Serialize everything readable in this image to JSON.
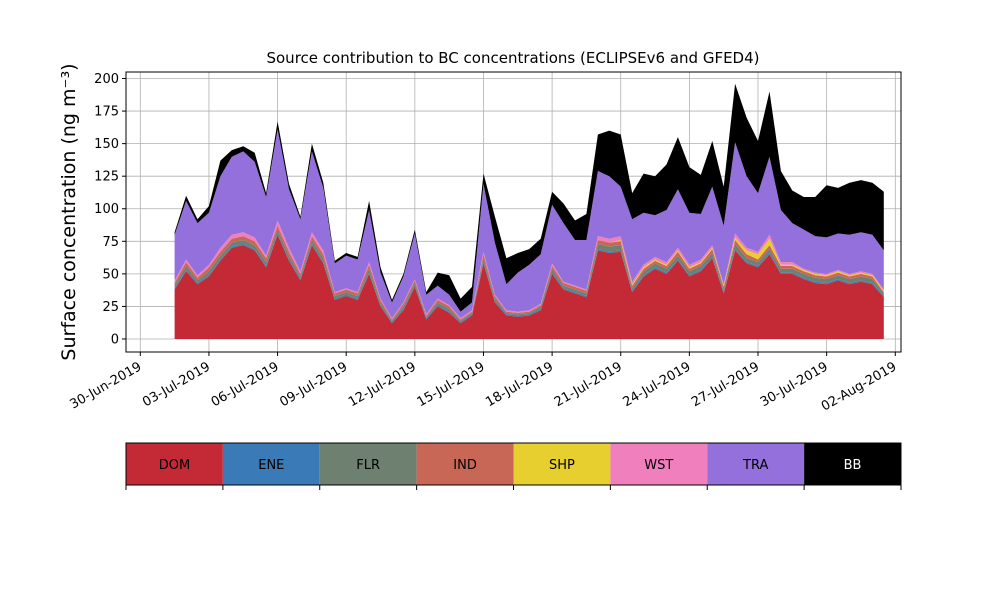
{
  "chart_data": {
    "type": "area",
    "stacked": true,
    "title": "Source contribution to BC concentrations (ECLIPSEv6 and GFED4)",
    "ylabel": "Surface concentration (ng m⁻³)",
    "xlabel": "",
    "ylim": [
      -10,
      205
    ],
    "xlim": [
      "2019-06-29T09:00",
      "2019-08-02T06:00"
    ],
    "yticks": [
      0,
      25,
      50,
      75,
      100,
      125,
      150,
      175,
      200
    ],
    "ytick_labels": [
      "0",
      "25",
      "50",
      "75",
      "100",
      "125",
      "150",
      "175",
      "200"
    ],
    "xticks": [
      "2019-06-30",
      "2019-07-03",
      "2019-07-06",
      "2019-07-09",
      "2019-07-12",
      "2019-07-15",
      "2019-07-18",
      "2019-07-21",
      "2019-07-24",
      "2019-07-27",
      "2019-07-30",
      "2019-08-02"
    ],
    "xtick_labels": [
      "30-Jun-2019",
      "03-Jul-2019",
      "06-Jul-2019",
      "09-Jul-2019",
      "12-Jul-2019",
      "15-Jul-2019",
      "18-Jul-2019",
      "21-Jul-2019",
      "24-Jul-2019",
      "27-Jul-2019",
      "30-Jul-2019",
      "02-Aug-2019"
    ],
    "grid": true,
    "legend": "colorbar below plot",
    "x": [
      "2019-07-01T12:00",
      "2019-07-02T00:00",
      "2019-07-02T12:00",
      "2019-07-03T00:00",
      "2019-07-03T12:00",
      "2019-07-04T00:00",
      "2019-07-04T12:00",
      "2019-07-05T00:00",
      "2019-07-05T12:00",
      "2019-07-06T00:00",
      "2019-07-06T12:00",
      "2019-07-07T00:00",
      "2019-07-07T12:00",
      "2019-07-08T00:00",
      "2019-07-08T12:00",
      "2019-07-09T00:00",
      "2019-07-09T12:00",
      "2019-07-10T00:00",
      "2019-07-10T12:00",
      "2019-07-11T00:00",
      "2019-07-11T12:00",
      "2019-07-12T00:00",
      "2019-07-12T12:00",
      "2019-07-13T00:00",
      "2019-07-13T12:00",
      "2019-07-14T00:00",
      "2019-07-14T12:00",
      "2019-07-15T00:00",
      "2019-07-15T12:00",
      "2019-07-16T00:00",
      "2019-07-16T12:00",
      "2019-07-17T00:00",
      "2019-07-17T12:00",
      "2019-07-18T00:00",
      "2019-07-18T12:00",
      "2019-07-19T00:00",
      "2019-07-19T12:00",
      "2019-07-20T00:00",
      "2019-07-20T12:00",
      "2019-07-21T00:00",
      "2019-07-21T12:00",
      "2019-07-22T00:00",
      "2019-07-22T12:00",
      "2019-07-23T00:00",
      "2019-07-23T12:00",
      "2019-07-24T00:00",
      "2019-07-24T12:00",
      "2019-07-25T00:00",
      "2019-07-25T12:00",
      "2019-07-26T00:00",
      "2019-07-26T12:00",
      "2019-07-27T00:00",
      "2019-07-27T12:00",
      "2019-07-28T00:00",
      "2019-07-28T12:00",
      "2019-07-29T00:00",
      "2019-07-29T12:00",
      "2019-07-30T00:00",
      "2019-07-30T12:00",
      "2019-07-31T00:00",
      "2019-07-31T12:00",
      "2019-08-01T00:00",
      "2019-08-01T12:00"
    ],
    "series": [
      {
        "name": "DOM",
        "color": "#c42a35",
        "values": [
          38,
          52,
          42,
          48,
          60,
          70,
          72,
          68,
          55,
          80,
          60,
          45,
          72,
          58,
          30,
          33,
          30,
          50,
          25,
          12,
          22,
          40,
          15,
          25,
          20,
          12,
          18,
          58,
          28,
          18,
          17,
          18,
          22,
          50,
          38,
          35,
          32,
          68,
          66,
          67,
          36,
          48,
          54,
          50,
          60,
          48,
          52,
          62,
          35,
          68,
          58,
          55,
          65,
          50,
          50,
          46,
          43,
          42,
          45,
          42,
          44,
          42,
          32
        ]
      },
      {
        "name": "ENE",
        "color": "#3a7ab6",
        "values": [
          1,
          1,
          1,
          1,
          1,
          1,
          1,
          1,
          1,
          1,
          1,
          1,
          1,
          1,
          1,
          1,
          1,
          1,
          1,
          1,
          1,
          1,
          1,
          1,
          1,
          1,
          1,
          1,
          1,
          1,
          1,
          1,
          1,
          1,
          1,
          1,
          1,
          1,
          1,
          1,
          1,
          1,
          1,
          1,
          1,
          1,
          1,
          1,
          1,
          1,
          1,
          1,
          1,
          1,
          1,
          1,
          1,
          1,
          1,
          1,
          1,
          1,
          1
        ]
      },
      {
        "name": "FLR",
        "color": "#6e8070",
        "values": [
          2,
          3,
          2,
          3,
          3,
          3,
          3,
          3,
          3,
          3,
          3,
          2,
          3,
          3,
          2,
          2,
          2,
          3,
          2,
          1,
          2,
          2,
          1,
          2,
          2,
          1,
          1,
          3,
          2,
          1,
          1,
          1,
          2,
          3,
          2,
          2,
          2,
          4,
          4,
          4,
          2,
          3,
          3,
          3,
          3,
          3,
          3,
          3,
          2,
          4,
          3,
          3,
          3,
          3,
          3,
          3,
          3,
          3,
          3,
          3,
          3,
          3,
          2
        ]
      },
      {
        "name": "IND",
        "color": "#c96757",
        "values": [
          2,
          3,
          2,
          3,
          3,
          3,
          3,
          3,
          3,
          3,
          3,
          2,
          3,
          3,
          2,
          2,
          2,
          3,
          2,
          1,
          2,
          2,
          1,
          2,
          2,
          1,
          1,
          3,
          2,
          1,
          1,
          1,
          1,
          2,
          2,
          2,
          2,
          3,
          3,
          3,
          2,
          2,
          2,
          2,
          3,
          2,
          2,
          3,
          2,
          3,
          3,
          2,
          3,
          2,
          2,
          2,
          2,
          2,
          2,
          2,
          2,
          2,
          1
        ]
      },
      {
        "name": "SHP",
        "color": "#e6cf2e",
        "values": [
          0,
          0,
          0,
          0,
          0,
          0,
          0,
          0,
          0,
          0,
          0,
          0,
          0,
          0,
          0,
          0,
          0,
          0,
          0,
          0,
          0,
          0,
          0,
          0,
          0,
          0,
          0,
          0,
          0,
          0,
          0,
          0,
          0,
          0,
          0,
          0,
          0,
          0,
          0,
          1,
          1,
          1,
          1,
          1,
          1,
          1,
          1,
          1,
          1,
          2,
          3,
          4,
          5,
          1,
          1,
          1,
          1,
          1,
          1,
          1,
          1,
          1,
          1
        ]
      },
      {
        "name": "WST",
        "color": "#f07fbe",
        "values": [
          2,
          2,
          2,
          2,
          3,
          3,
          3,
          3,
          2,
          4,
          3,
          2,
          3,
          3,
          1,
          1,
          1,
          2,
          1,
          1,
          1,
          1,
          1,
          1,
          1,
          1,
          1,
          2,
          1,
          1,
          1,
          1,
          1,
          2,
          1,
          1,
          1,
          3,
          3,
          3,
          2,
          2,
          2,
          2,
          2,
          2,
          2,
          2,
          1,
          3,
          2,
          2,
          3,
          2,
          2,
          1,
          1,
          1,
          1,
          1,
          1,
          1,
          1
        ]
      },
      {
        "name": "TRA",
        "color": "#9370db",
        "values": [
          35,
          45,
          40,
          40,
          55,
          60,
          62,
          58,
          45,
          70,
          45,
          40,
          62,
          48,
          22,
          25,
          25,
          40,
          20,
          12,
          20,
          35,
          15,
          10,
          8,
          5,
          6,
          52,
          40,
          20,
          30,
          35,
          38,
          45,
          45,
          35,
          38,
          50,
          48,
          38,
          48,
          40,
          32,
          40,
          45,
          40,
          35,
          45,
          45,
          70,
          55,
          45,
          60,
          40,
          30,
          30,
          28,
          28,
          28,
          30,
          30,
          30,
          30
        ]
      },
      {
        "name": "BB",
        "color": "#000000",
        "values": [
          2,
          4,
          3,
          5,
          12,
          5,
          4,
          7,
          3,
          6,
          4,
          2,
          6,
          4,
          2,
          2,
          2,
          7,
          4,
          2,
          2,
          3,
          2,
          10,
          15,
          10,
          12,
          8,
          20,
          20,
          15,
          12,
          12,
          10,
          15,
          15,
          20,
          28,
          35,
          40,
          20,
          30,
          30,
          35,
          40,
          35,
          30,
          35,
          30,
          45,
          45,
          40,
          50,
          30,
          25,
          25,
          30,
          40,
          35,
          40,
          40,
          40,
          45
        ]
      }
    ]
  }
}
